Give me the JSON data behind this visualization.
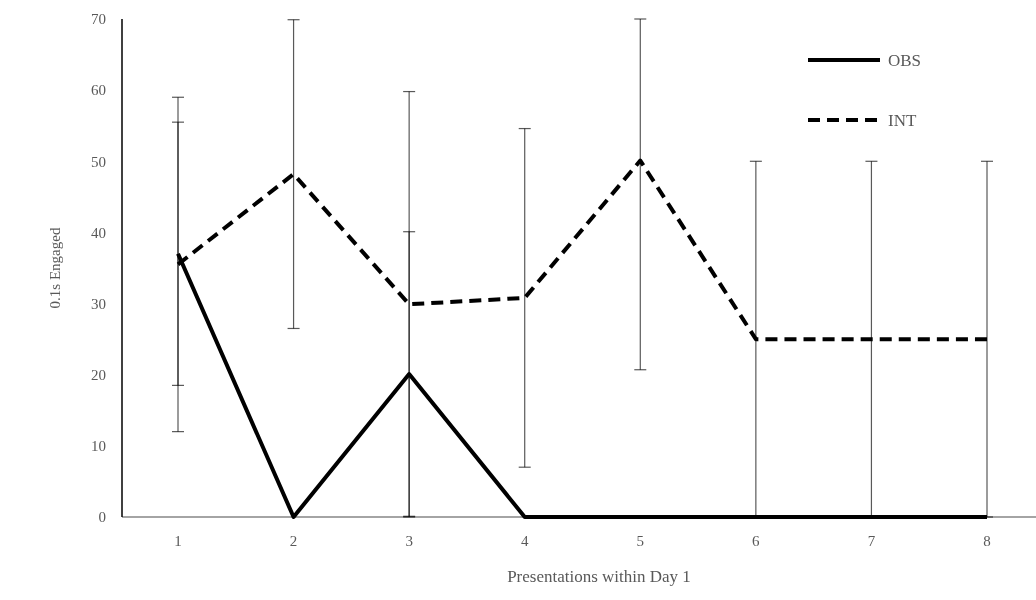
{
  "chart_data": {
    "type": "line",
    "xlabel": "Presentations within Day 1",
    "ylabel": "0.1s Engaged",
    "categories": [
      "1",
      "2",
      "3",
      "4",
      "5",
      "6",
      "7",
      "8"
    ],
    "series": [
      {
        "name": "OBS",
        "color": "#000000",
        "line_style": "solid",
        "values": [
          37,
          0,
          20.1,
          0,
          0,
          0,
          0,
          0
        ],
        "errors": [
          18.5,
          null,
          20,
          null,
          null,
          null,
          null,
          null
        ]
      },
      {
        "name": "INT",
        "color": "#000000",
        "line_style": "dashed",
        "values": [
          35.5,
          48.2,
          29.9,
          30.8,
          50.1,
          25,
          25,
          25
        ],
        "errors": [
          23.5,
          21.7,
          29.9,
          23.8,
          [
            20.7,
            70
          ],
          25,
          25,
          25
        ]
      }
    ],
    "ylim": [
      0,
      70
    ],
    "yticks": [
      0,
      10,
      20,
      30,
      40,
      50,
      60,
      70
    ],
    "grid": false,
    "legend": "top right",
    "marker": "none"
  }
}
